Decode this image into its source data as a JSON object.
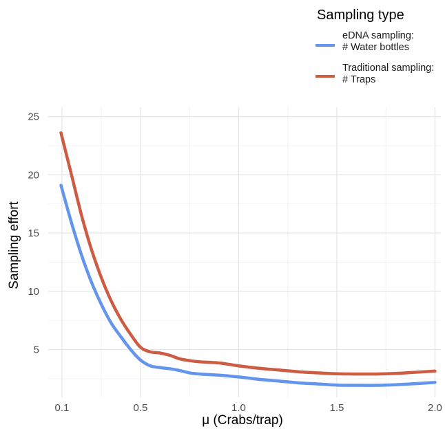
{
  "chart_data": {
    "type": "line",
    "xlabel": "μ (Crabs/trap)",
    "ylabel": "Sampling effort",
    "xlim": [
      0.03,
      2.03
    ],
    "ylim": [
      0.9,
      25.8
    ],
    "x_ticks": [
      0.1,
      0.5,
      1.0,
      1.5,
      2.0
    ],
    "x_tick_labels": [
      "0.1",
      "0.5",
      "1.0",
      "1.5",
      "2.0"
    ],
    "y_ticks": [
      5,
      10,
      15,
      20,
      25
    ],
    "y_tick_labels": [
      "5",
      "10",
      "15",
      "20",
      "25"
    ],
    "grid": true,
    "legend": {
      "title": "Sampling type",
      "position": "top-right",
      "entries": [
        {
          "line1": "eDNA sampling:",
          "line2": "# Water bottles",
          "series": 0
        },
        {
          "line1": "Traditional sampling:",
          "line2": "# Traps",
          "series": 1
        }
      ]
    },
    "series": [
      {
        "name": "eDNA sampling: # Water bottles",
        "color": "#6495ED",
        "x": [
          0.095,
          0.15,
          0.2,
          0.25,
          0.3,
          0.35,
          0.4,
          0.45,
          0.5,
          0.55,
          0.6,
          0.65,
          0.7,
          0.75,
          0.8,
          0.9,
          1.0,
          1.1,
          1.2,
          1.3,
          1.4,
          1.5,
          1.6,
          1.7,
          1.8,
          1.9,
          2.0
        ],
        "y": [
          19.1,
          15.8,
          13.1,
          10.8,
          8.9,
          7.3,
          6.1,
          5.0,
          4.1,
          3.6,
          3.45,
          3.35,
          3.2,
          3.0,
          2.9,
          2.8,
          2.65,
          2.45,
          2.3,
          2.15,
          2.05,
          1.95,
          1.93,
          1.93,
          1.98,
          2.07,
          2.18
        ]
      },
      {
        "name": "Traditional sampling: # Traps",
        "color": "#CD5C45",
        "x": [
          0.095,
          0.15,
          0.2,
          0.25,
          0.3,
          0.35,
          0.4,
          0.45,
          0.5,
          0.55,
          0.6,
          0.65,
          0.7,
          0.75,
          0.8,
          0.9,
          1.0,
          1.1,
          1.2,
          1.3,
          1.4,
          1.5,
          1.6,
          1.7,
          1.8,
          1.9,
          2.0
        ],
        "y": [
          23.6,
          19.9,
          16.5,
          13.6,
          11.2,
          9.2,
          7.6,
          6.3,
          5.2,
          4.8,
          4.7,
          4.5,
          4.2,
          4.05,
          3.95,
          3.85,
          3.6,
          3.4,
          3.25,
          3.1,
          3.0,
          2.92,
          2.9,
          2.9,
          2.95,
          3.05,
          3.15
        ]
      }
    ]
  }
}
